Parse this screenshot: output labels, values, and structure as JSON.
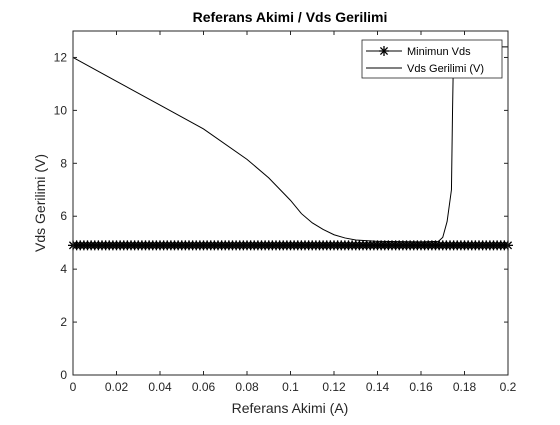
{
  "chart_data": {
    "type": "line",
    "title": "Referans Akimi / Vds Gerilimi",
    "xlabel": "Referans Akimi (A)",
    "ylabel": "Vds Gerilimi (V)",
    "xlim": [
      0,
      0.2
    ],
    "ylim": [
      0,
      13
    ],
    "x_ticks": [
      0,
      0.02,
      0.04,
      0.06,
      0.08,
      0.1,
      0.12,
      0.14,
      0.16,
      0.18,
      0.2
    ],
    "y_ticks": [
      0,
      2,
      4,
      6,
      8,
      10,
      12
    ],
    "x_tick_labels": [
      "0",
      "0.02",
      "0.04",
      "0.06",
      "0.08",
      "0.1",
      "0.12",
      "0.14",
      "0.16",
      "0.18",
      "0.2"
    ],
    "y_tick_labels": [
      "0",
      "2",
      "4",
      "6",
      "8",
      "10",
      "12"
    ],
    "grid": false,
    "legend": "top-right",
    "series": [
      {
        "name": "Minimun Vds",
        "marker": "asterisk",
        "color": "#000000",
        "y_constant": 4.9,
        "x_range": [
          0,
          0.2
        ]
      },
      {
        "name": "Vds Gerilimi (V)",
        "color": "#000000",
        "points": [
          [
            0,
            12.0
          ],
          [
            0.02,
            11.1
          ],
          [
            0.04,
            10.2
          ],
          [
            0.06,
            9.3
          ],
          [
            0.08,
            8.15
          ],
          [
            0.09,
            7.45
          ],
          [
            0.1,
            6.6
          ],
          [
            0.105,
            6.1
          ],
          [
            0.11,
            5.75
          ],
          [
            0.115,
            5.5
          ],
          [
            0.12,
            5.3
          ],
          [
            0.125,
            5.18
          ],
          [
            0.13,
            5.1
          ],
          [
            0.14,
            5.05
          ],
          [
            0.16,
            5.03
          ],
          [
            0.168,
            5.05
          ],
          [
            0.17,
            5.2
          ],
          [
            0.172,
            5.8
          ],
          [
            0.174,
            7.0
          ],
          [
            0.1745,
            10.0
          ],
          [
            0.175,
            12.4
          ],
          [
            0.2,
            12.4
          ]
        ]
      }
    ]
  }
}
